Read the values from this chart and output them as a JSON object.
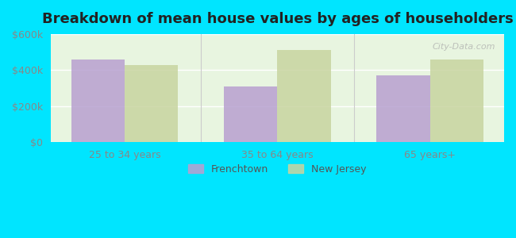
{
  "title": "Breakdown of mean house values by ages of householders",
  "categories": [
    "25 to 34 years",
    "35 to 64 years",
    "65 years+"
  ],
  "frenchtown_values": [
    460000,
    310000,
    370000
  ],
  "newjersey_values": [
    430000,
    510000,
    460000
  ],
  "frenchtown_color": "#b8a0d0",
  "newjersey_color": "#c8d4a0",
  "background_outer": "#00e5ff",
  "background_inner": "#e8f5e0",
  "ylim": [
    0,
    600000
  ],
  "yticks": [
    0,
    200000,
    400000,
    600000
  ],
  "ytick_labels": [
    "$0",
    "$200k",
    "$400k",
    "$600k"
  ],
  "legend_frenchtown": "Frenchtown",
  "legend_newjersey": "New Jersey",
  "bar_width": 0.35,
  "title_fontsize": 13,
  "tick_fontsize": 9,
  "legend_fontsize": 9
}
